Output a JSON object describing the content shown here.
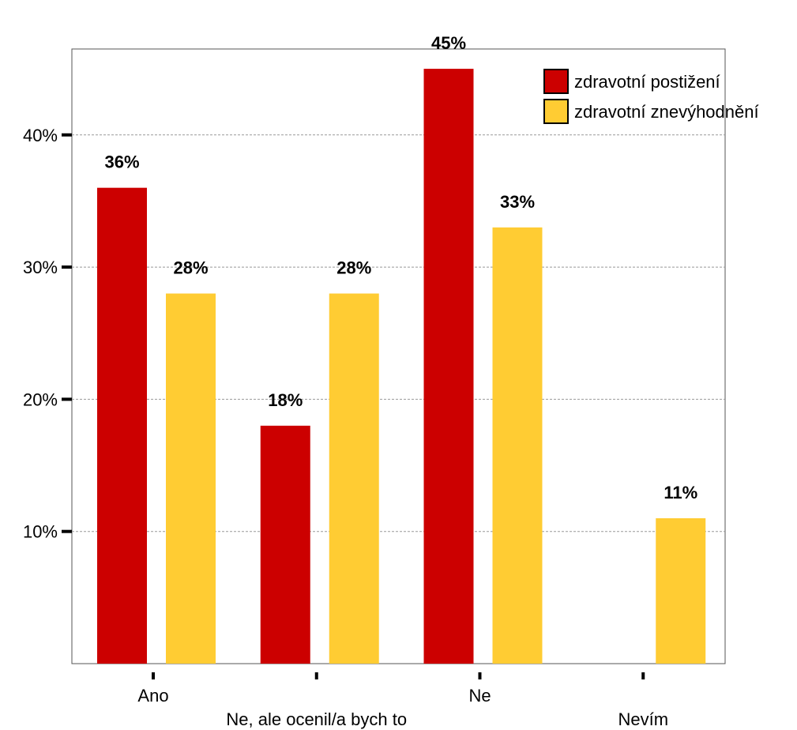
{
  "chart_data": {
    "type": "bar",
    "categories": [
      "Ano",
      "Ne, ale ocenil/a bych to",
      "Ne",
      "Nevím"
    ],
    "series": [
      {
        "name": "zdravotní postižení",
        "values": [
          36,
          18,
          45,
          null
        ],
        "color": "#cc0000"
      },
      {
        "name": "zdravotní znevýhodnění",
        "values": [
          28,
          28,
          33,
          11
        ],
        "color": "#ffcc33"
      }
    ],
    "data_labels": [
      [
        "36%",
        "18%",
        "45%",
        null
      ],
      [
        "28%",
        "28%",
        "33%",
        "11%"
      ]
    ],
    "yticks": [
      10,
      20,
      30,
      40
    ],
    "ytick_labels": [
      "10%",
      "20%",
      "30%",
      "40%"
    ],
    "ylim": [
      0,
      46.5
    ],
    "grid": true,
    "legend": "top-right",
    "title": "",
    "xlabel": "",
    "ylabel": ""
  }
}
